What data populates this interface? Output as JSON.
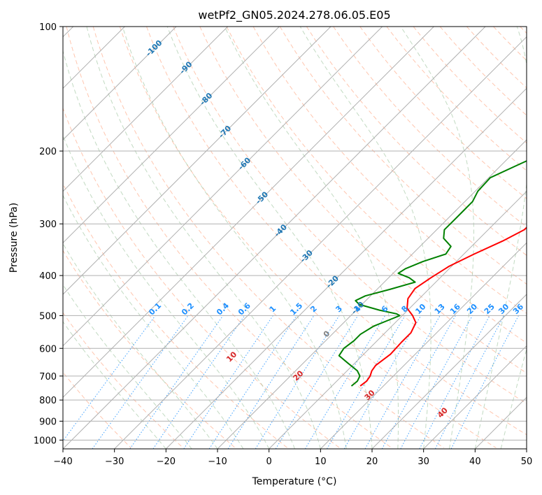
{
  "chart_data": {
    "type": "line",
    "title": "wetPf2_GN05.2024.278.06.05.E05",
    "xlabel": "Temperature (°C)",
    "ylabel": "Pressure (hPa)",
    "xlim": [
      -40,
      50
    ],
    "ylim": [
      1050,
      100
    ],
    "y_scale": "log",
    "x_ticks": [
      -40,
      -30,
      -20,
      -10,
      0,
      10,
      20,
      30,
      40,
      50
    ],
    "y_ticks": [
      1000,
      900,
      800,
      700,
      600,
      500,
      400,
      300,
      200,
      100
    ],
    "grid": true,
    "colors": {
      "temperature": "#ff0000",
      "dewpoint": "#008000",
      "isotherm": "#b0b0b0",
      "dry_adiabat": "#ffa07a",
      "moist_adiabat": "#8fbc8f",
      "mixing_ratio": "#1e90ff",
      "isotherm_label": "#1f77b4",
      "mixing_label": "#1e90ff",
      "dry_label": "#d62728",
      "moist_label": "#808080"
    },
    "series": [
      {
        "key": "temperature",
        "points": [
          [
            5.5,
            740
          ],
          [
            5.8,
            720
          ],
          [
            5.5,
            700
          ],
          [
            4.8,
            680
          ],
          [
            4.5,
            660
          ],
          [
            5.2,
            620
          ],
          [
            5.0,
            580
          ],
          [
            5.0,
            550
          ],
          [
            4.0,
            520
          ],
          [
            2.0,
            500
          ],
          [
            -0.5,
            480
          ],
          [
            -2.2,
            455
          ],
          [
            -2.8,
            430
          ],
          [
            -1.8,
            405
          ],
          [
            -0.5,
            380
          ],
          [
            2.0,
            355
          ],
          [
            5.0,
            330
          ],
          [
            7.0,
            310
          ],
          [
            7.2,
            290
          ],
          [
            6.7,
            270
          ],
          [
            6.5,
            252
          ],
          [
            7.6,
            235
          ],
          [
            9.8,
            215
          ],
          [
            11.6,
            200
          ],
          [
            13.5,
            185
          ],
          [
            16.9,
            170
          ],
          [
            19.5,
            160
          ],
          [
            22.3,
            150
          ],
          [
            24.9,
            140
          ],
          [
            27.5,
            130
          ],
          [
            29.8,
            120
          ],
          [
            32.0,
            112
          ],
          [
            33.2,
            106
          ],
          [
            33.5,
            100
          ]
        ]
      },
      {
        "key": "dewpoint",
        "points": [
          [
            3.8,
            740
          ],
          [
            4.0,
            720
          ],
          [
            3.5,
            700
          ],
          [
            2.0,
            680
          ],
          [
            -1.5,
            650
          ],
          [
            -4.5,
            625
          ],
          [
            -5.0,
            600
          ],
          [
            -4.5,
            575
          ],
          [
            -4.5,
            555
          ],
          [
            -3.5,
            530
          ],
          [
            -1.5,
            510
          ],
          [
            -0.5,
            500
          ],
          [
            -1.5,
            495
          ],
          [
            -5.5,
            485
          ],
          [
            -10.5,
            470
          ],
          [
            -12.0,
            460
          ],
          [
            -11.0,
            448
          ],
          [
            -7.5,
            432
          ],
          [
            -4.0,
            415
          ],
          [
            -6.0,
            405
          ],
          [
            -9.0,
            395
          ],
          [
            -8.5,
            385
          ],
          [
            -6.5,
            370
          ],
          [
            -3.5,
            355
          ],
          [
            -4.0,
            340
          ],
          [
            -7.0,
            325
          ],
          [
            -8.5,
            310
          ],
          [
            -8.5,
            295
          ],
          [
            -8.5,
            280
          ],
          [
            -8.5,
            265
          ],
          [
            -9.5,
            250
          ],
          [
            -9.7,
            232
          ],
          [
            -7.0,
            217
          ],
          [
            -3.6,
            200
          ],
          [
            0.1,
            185
          ],
          [
            4.2,
            170
          ],
          [
            4.0,
            160
          ],
          [
            1.3,
            152
          ],
          [
            -1.5,
            145
          ],
          [
            -0.8,
            138
          ],
          [
            1.2,
            130
          ],
          [
            2.6,
            122
          ],
          [
            3.7,
            115
          ],
          [
            4.4,
            108
          ],
          [
            5.2,
            100
          ]
        ]
      }
    ],
    "isotherm_labels": [
      {
        "t": -100,
        "p": 113,
        "text": "-100"
      },
      {
        "t": -90,
        "p": 126,
        "text": "-90"
      },
      {
        "t": -80,
        "p": 150,
        "text": "-80"
      },
      {
        "t": -70,
        "p": 180,
        "text": "-70"
      },
      {
        "t": -60,
        "p": 215,
        "text": "-60"
      },
      {
        "t": -50,
        "p": 260,
        "text": "-50"
      },
      {
        "t": -40,
        "p": 312,
        "text": "-40"
      },
      {
        "t": -30,
        "p": 360,
        "text": "-30"
      },
      {
        "t": -20,
        "p": 415,
        "text": "-20"
      },
      {
        "t": -10,
        "p": 480,
        "text": "-10"
      }
    ],
    "mixing_ratio_labels": [
      "0.1",
      "0.2",
      "0.4",
      "0.6",
      "1",
      "1.5",
      "2",
      "3",
      "4",
      "6",
      "8",
      "10",
      "13",
      "16",
      "20",
      "25",
      "30",
      "36"
    ],
    "dry_adiabat_labels": [
      "10",
      "20",
      "30",
      "40"
    ],
    "moist_adiabat_labels": [
      "0"
    ]
  }
}
